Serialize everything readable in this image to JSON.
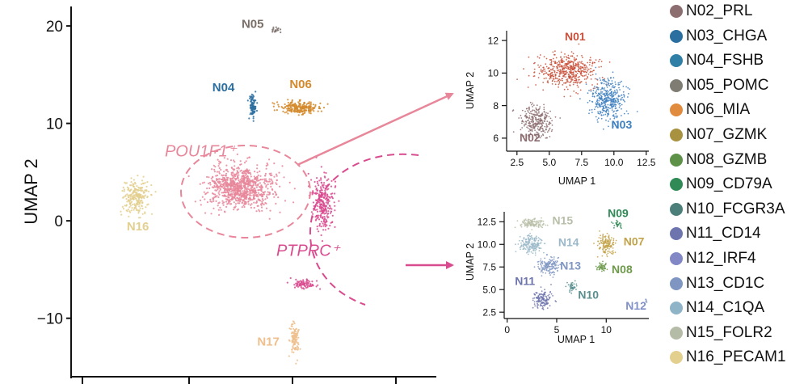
{
  "chart_data": [
    {
      "type": "scatter",
      "title": "",
      "xlabel": "",
      "ylabel": "UMAP 2",
      "ylim": [
        -16,
        22
      ],
      "yticks": [
        20,
        10,
        0,
        -10
      ],
      "grid": false,
      "clusters": [
        {
          "name": "N05",
          "color": "#7a6f68",
          "center": [
            -2.4,
            19.6
          ],
          "spread": [
            0.5,
            0.4
          ],
          "n": 16,
          "label_pos": [
            -4.6,
            19.8
          ]
        },
        {
          "name": "N04",
          "color": "#2b6fa0",
          "center": [
            -4.6,
            11.8
          ],
          "spread": [
            0.35,
            1.2
          ],
          "n": 90,
          "label_pos": [
            -7.4,
            13.3
          ]
        },
        {
          "name": "N06",
          "color": "#d48a2c",
          "center": [
            -0.2,
            11.6
          ],
          "spread": [
            1.9,
            0.6
          ],
          "n": 220,
          "label_pos": [
            0.0,
            13.6
          ]
        },
        {
          "name": "N16",
          "color": "#e3cf8e",
          "center": [
            -15.8,
            2.5
          ],
          "spread": [
            1.3,
            1.8
          ],
          "n": 230,
          "label_pos": [
            -15.6,
            -1.0
          ]
        },
        {
          "name": "N17",
          "color": "#efbf8d",
          "center": [
            -0.6,
            -12.2
          ],
          "spread": [
            0.45,
            1.7
          ],
          "n": 110,
          "label_pos": [
            -3.1,
            -12.8
          ]
        },
        {
          "name": "POU1F1⁺",
          "color": "#e8869a",
          "center": [
            -5.7,
            3.4
          ],
          "spread": [
            3.2,
            2.2
          ],
          "n": 900,
          "label_pos": [
            -9.6,
            6.6
          ]
        },
        {
          "name": "PTPRC⁺",
          "color": "#d94b8f",
          "center": [
            2.1,
            1.8
          ],
          "spread": [
            1.0,
            2.7
          ],
          "n": 280,
          "label_pos": [
            0.7,
            -3.6
          ]
        },
        {
          "name": "PTPRC⁺ (lower)",
          "color": "#d94b8f",
          "center": [
            0.3,
            -6.5
          ],
          "spread": [
            1.2,
            0.5
          ],
          "n": 80,
          "label_pos": null
        }
      ],
      "annotations": [
        "POU1F1⁺",
        "PTPRC⁺"
      ]
    },
    {
      "type": "scatter",
      "title": "",
      "xlabel": "UMAP 1",
      "ylabel": "UMAP 2",
      "xlim": [
        1.7,
        12.7
      ],
      "ylim": [
        5.2,
        12.6
      ],
      "xticks": [
        2.5,
        5.0,
        7.5,
        10.0,
        12.5
      ],
      "yticks": [
        6,
        8,
        10,
        12
      ],
      "clusters": [
        {
          "name": "N01",
          "color": "#c9503a",
          "center": [
            6.5,
            10.1
          ],
          "spread": [
            2.3,
            1.0
          ],
          "n": 500,
          "label_pos": [
            7.0,
            12.0
          ]
        },
        {
          "name": "N03",
          "color": "#3d7fbf",
          "center": [
            9.6,
            8.4
          ],
          "spread": [
            1.3,
            1.2
          ],
          "n": 380,
          "label_pos": [
            10.6,
            6.6
          ]
        },
        {
          "name": "N02",
          "color": "#8c6d70",
          "center": [
            4.0,
            7.0
          ],
          "spread": [
            1.3,
            0.9
          ],
          "n": 280,
          "label_pos": [
            3.5,
            5.8
          ]
        }
      ]
    },
    {
      "type": "scatter",
      "title": "",
      "xlabel": "UMAP 1",
      "ylabel": "UMAP 2",
      "xlim": [
        -0.3,
        14.3
      ],
      "ylim": [
        1.8,
        13.6
      ],
      "xticks": [
        0,
        5,
        10
      ],
      "yticks": [
        2.5,
        5.0,
        7.5,
        10.0,
        12.5
      ],
      "clusters": [
        {
          "name": "N15",
          "color": "#b8bfa8",
          "center": [
            2.6,
            12.3
          ],
          "spread": [
            1.2,
            0.5
          ],
          "n": 120,
          "label_pos": [
            5.6,
            12.2
          ]
        },
        {
          "name": "N14",
          "color": "#9ab8c8",
          "center": [
            2.4,
            10.0
          ],
          "spread": [
            1.2,
            1.1
          ],
          "n": 180,
          "label_pos": [
            6.2,
            9.8
          ]
        },
        {
          "name": "N13",
          "color": "#7f96c2",
          "center": [
            4.2,
            7.6
          ],
          "spread": [
            1.2,
            1.0
          ],
          "n": 150,
          "label_pos": [
            6.4,
            7.2
          ]
        },
        {
          "name": "N11",
          "color": "#6e75ae",
          "center": [
            3.6,
            4.0
          ],
          "spread": [
            1.0,
            1.0
          ],
          "n": 140,
          "label_pos": [
            1.8,
            5.5
          ]
        },
        {
          "name": "N10",
          "color": "#5b8f8f",
          "center": [
            6.6,
            5.3
          ],
          "spread": [
            0.5,
            0.6
          ],
          "n": 40,
          "label_pos": [
            8.2,
            4.0
          ]
        },
        {
          "name": "N07",
          "color": "#c3a34a",
          "center": [
            10.0,
            10.0
          ],
          "spread": [
            0.9,
            1.0
          ],
          "n": 150,
          "label_pos": [
            12.8,
            9.9
          ]
        },
        {
          "name": "N08",
          "color": "#6f9a4c",
          "center": [
            9.6,
            7.5
          ],
          "spread": [
            0.5,
            0.5
          ],
          "n": 50,
          "label_pos": [
            11.6,
            6.8
          ]
        },
        {
          "name": "N09",
          "color": "#2f8a56",
          "center": [
            11.0,
            12.2
          ],
          "spread": [
            0.5,
            0.4
          ],
          "n": 25,
          "label_pos": [
            11.2,
            13.0
          ]
        },
        {
          "name": "N12",
          "color": "#8090c8",
          "center": [
            14.0,
            3.7
          ],
          "spread": [
            0.1,
            0.2
          ],
          "n": 6,
          "label_pos": [
            13.0,
            2.8
          ]
        }
      ]
    }
  ],
  "legend": [
    {
      "label": "N02_PRL",
      "color": "#8c6d70"
    },
    {
      "label": "N03_CHGA",
      "color": "#2b6fa0"
    },
    {
      "label": "N04_FSHB",
      "color": "#2f7fa6"
    },
    {
      "label": "N05_POMC",
      "color": "#7f7d73"
    },
    {
      "label": "N06_MIA",
      "color": "#e08b3e"
    },
    {
      "label": "N07_GZMK",
      "color": "#a8913f"
    },
    {
      "label": "N08_GZMB",
      "color": "#5c9147"
    },
    {
      "label": "N09_CD79A",
      "color": "#2f8a56"
    },
    {
      "label": "N10_FCGR3A",
      "color": "#4d7f7a"
    },
    {
      "label": "N11_CD14",
      "color": "#6e75ae"
    },
    {
      "label": "N12_IRF4",
      "color": "#8288c6"
    },
    {
      "label": "N13_CD1C",
      "color": "#7f96c2"
    },
    {
      "label": "N14_C1QA",
      "color": "#8fb4c7"
    },
    {
      "label": "N15_FOLR2",
      "color": "#b4bba6"
    },
    {
      "label": "N16_PECAM1",
      "color": "#e3cf8e"
    }
  ]
}
